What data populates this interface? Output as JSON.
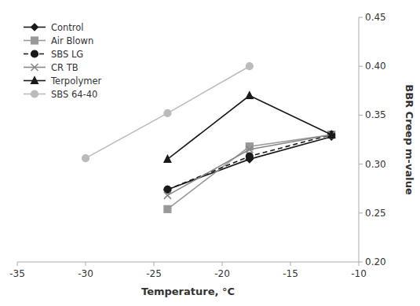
{
  "chart_data": {
    "type": "line",
    "x_label": "Temperature, °C",
    "y_label": "BBR Creep m-value",
    "xlim": [
      -35,
      -10
    ],
    "ylim": [
      0.2,
      0.45
    ],
    "xticks": [
      -35,
      -30,
      -25,
      -20,
      -15,
      -10
    ],
    "yticks": [
      {
        "value": 0.2,
        "label": "0.20"
      },
      0.25,
      {
        "value": 0.3,
        "label": "0.30"
      },
      0.35,
      {
        "value": 0.4,
        "label": "0.40"
      },
      0.45
    ],
    "legend": "upper left",
    "grid": false,
    "series": [
      {
        "name": "Control",
        "color": "#1a1a1a",
        "marker": "diamond",
        "line_style": "solid",
        "x": [
          -24,
          -18,
          -12
        ],
        "values": [
          0.274,
          0.305,
          0.328
        ]
      },
      {
        "name": "Air Blown",
        "color": "#999999",
        "marker": "square",
        "line_style": "solid",
        "x": [
          -24,
          -18,
          -12
        ],
        "values": [
          0.254,
          0.318,
          0.33
        ]
      },
      {
        "name": "SBS LG",
        "color": "#1a1a1a",
        "marker": "circle",
        "line_style": "dashed",
        "x": [
          -24,
          -18,
          -12
        ],
        "values": [
          0.274,
          0.308,
          0.33
        ]
      },
      {
        "name": "CR TB",
        "color": "#888888",
        "marker": "x",
        "line_style": "solid",
        "x": [
          -24,
          -18,
          -12
        ],
        "values": [
          0.268,
          0.315,
          0.33
        ]
      },
      {
        "name": "Terpolymer",
        "color": "#1a1a1a",
        "marker": "triangle",
        "line_style": "solid",
        "x": [
          -24,
          -18,
          -12
        ],
        "values": [
          0.305,
          0.37,
          0.33
        ]
      },
      {
        "name": "SBS 64-40",
        "color": "#bbbbbb",
        "marker": "circle",
        "line_style": "solid",
        "x": [
          -30,
          -24,
          -18
        ],
        "values": [
          0.306,
          0.352,
          0.4
        ]
      }
    ]
  }
}
